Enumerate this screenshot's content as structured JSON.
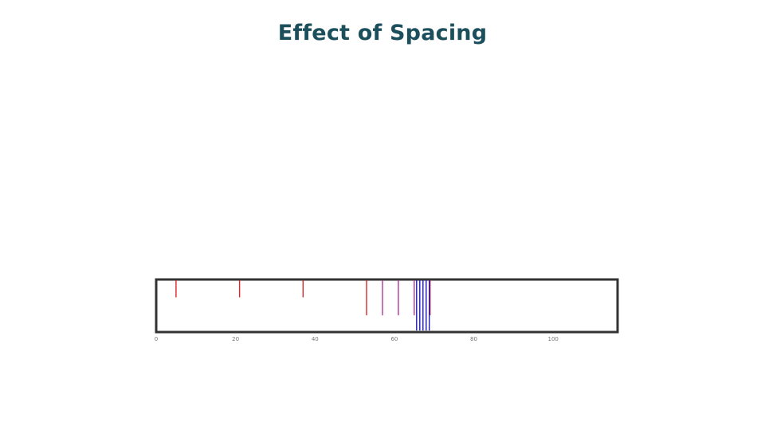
{
  "slide": {
    "title": "Effect of Spacing"
  },
  "chart_data": {
    "type": "line",
    "title": "",
    "xlabel": "",
    "ylabel": "",
    "xlim": [
      0,
      117
    ],
    "ylim": [
      0,
      1
    ],
    "x_ticks": [
      0,
      20,
      40,
      60,
      80,
      100
    ],
    "grid": false,
    "legend": "none",
    "note": "",
    "series": [
      {
        "color": "#d9262b",
        "lines": [
          {
            "x": 5,
            "y": 0.66
          },
          {
            "x": 21,
            "y": 0.66
          },
          {
            "x": 37,
            "y": 0.66
          },
          {
            "x": 53,
            "y": 0.32
          },
          {
            "x": 69,
            "y": 0.32
          }
        ]
      },
      {
        "color": "#b0369a",
        "lines": [
          {
            "x": 57,
            "y": 0.32
          },
          {
            "x": 61,
            "y": 0.32
          },
          {
            "x": 65,
            "y": 0.32
          }
        ]
      },
      {
        "color": "#1b1bb5",
        "lines": [
          {
            "x": 65.6,
            "y": 0.0
          },
          {
            "x": 66.4,
            "y": 0.0
          },
          {
            "x": 67.2,
            "y": 0.0
          },
          {
            "x": 68.0,
            "y": 0.0
          },
          {
            "x": 68.8,
            "y": 0.0
          }
        ]
      }
    ]
  }
}
